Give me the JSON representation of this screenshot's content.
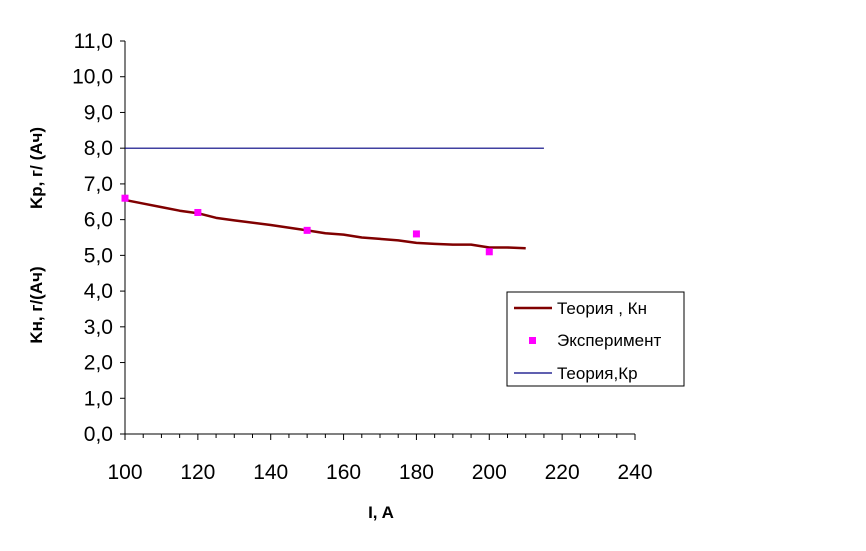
{
  "chart_data": {
    "type": "line",
    "xlabel": "I, A",
    "ylabel_top": "Kр, г/ (Ач)",
    "ylabel_bottom": "Kн,  г/(Ач)",
    "xlim": [
      100,
      240
    ],
    "ylim": [
      0,
      11
    ],
    "x_ticks": [
      100,
      120,
      140,
      160,
      180,
      200,
      220,
      240
    ],
    "x_tick_labels": [
      "100",
      "120",
      "140",
      "160",
      "180",
      "200",
      "220",
      "240"
    ],
    "y_ticks": [
      0,
      1,
      2,
      3,
      4,
      5,
      6,
      7,
      8,
      9,
      10,
      11
    ],
    "y_tick_labels": [
      "0,0",
      "1,0",
      "2,0",
      "3,0",
      "4,0",
      "5,0",
      "6,0",
      "7,0",
      "8,0",
      "9,0",
      "10,0",
      "11,0"
    ],
    "grid": false,
    "legend_position": "right",
    "series": [
      {
        "name": "Теория , Кн",
        "kind": "line",
        "color": "#800000",
        "x": [
          100,
          105,
          110,
          115,
          120,
          125,
          130,
          140,
          150,
          155,
          160,
          165,
          170,
          175,
          180,
          185,
          190,
          195,
          200,
          205,
          210
        ],
        "y": [
          6.55,
          6.45,
          6.35,
          6.25,
          6.18,
          6.05,
          5.98,
          5.85,
          5.7,
          5.62,
          5.58,
          5.5,
          5.46,
          5.42,
          5.35,
          5.32,
          5.3,
          5.3,
          5.22,
          5.22,
          5.2
        ]
      },
      {
        "name": "Эксперимент",
        "kind": "scatter",
        "color": "#ff00ff",
        "x": [
          100,
          120,
          150,
          180,
          200
        ],
        "y": [
          6.6,
          6.2,
          5.7,
          5.6,
          5.1
        ]
      },
      {
        "name": "Теория,Кр",
        "kind": "line",
        "color": "#000080",
        "x": [
          100,
          215
        ],
        "y": [
          8.0,
          8.0
        ]
      }
    ]
  }
}
